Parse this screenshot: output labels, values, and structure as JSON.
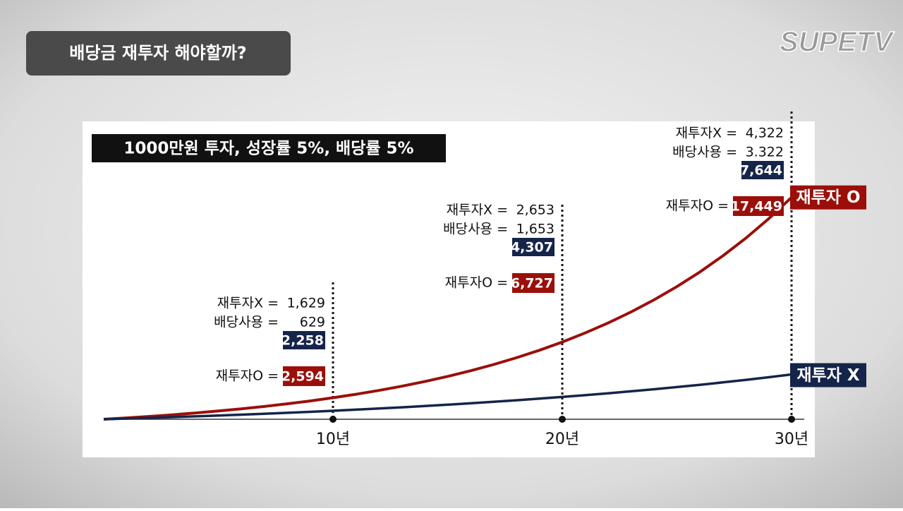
{
  "header": {
    "title": "배당금 재투자 해야할까?",
    "logo": "SUPETV"
  },
  "chart_data": {
    "type": "line",
    "subtitle": "1000만원 투자, 성장률 5%, 배당률 5%",
    "x": [
      0,
      1,
      2,
      3,
      4,
      5,
      6,
      7,
      8,
      9,
      10,
      11,
      12,
      13,
      14,
      15,
      16,
      17,
      18,
      19,
      20,
      21,
      22,
      23,
      24,
      25,
      26,
      27,
      28,
      29,
      30
    ],
    "xlim": [
      0,
      30
    ],
    "xticks": [
      {
        "value": 10,
        "label": "10년"
      },
      {
        "value": 20,
        "label": "20년"
      },
      {
        "value": 30,
        "label": "30년"
      }
    ],
    "ylim": [
      1000,
      20000
    ],
    "series": [
      {
        "name": "재투자 O",
        "color": "#9b0f0a",
        "values": [
          1000,
          1100,
          1210,
          1331,
          1464,
          1611,
          1772,
          1949,
          2144,
          2358,
          2594,
          2853,
          3138,
          3452,
          3797,
          4177,
          4595,
          5054,
          5560,
          6116,
          6727,
          7400,
          8140,
          8954,
          9850,
          10835,
          11918,
          13110,
          14421,
          15863,
          17449
        ]
      },
      {
        "name": "재투자 X",
        "color": "#15244a",
        "values": [
          1000,
          1050,
          1103,
          1158,
          1216,
          1276,
          1340,
          1407,
          1477,
          1551,
          1629,
          1710,
          1796,
          1886,
          1980,
          2079,
          2183,
          2292,
          2407,
          2527,
          2653,
          2786,
          2925,
          3072,
          3225,
          3386,
          3556,
          3733,
          3920,
          4116,
          4322
        ]
      }
    ],
    "annotations": [
      {
        "x": 10,
        "label_x": "재투자X  =",
        "value_x": "1,629",
        "label_div": "배당사용 =",
        "value_div": "629",
        "total": "2,258",
        "label_o": "재투자O =",
        "value_o": "2,594"
      },
      {
        "x": 20,
        "label_x": "재투자X  =",
        "value_x": "2,653",
        "label_div": "배당사용 =",
        "value_div": "1,653",
        "total": "4,307",
        "label_o": "재투자O =",
        "value_o": "6,727"
      },
      {
        "x": 30,
        "label_x": "재투자X  =",
        "value_x": "4,322",
        "label_div": "배당사용 =",
        "value_div": "3.322",
        "total": "7,644",
        "label_o": "재투자O =",
        "value_o": "17,449"
      }
    ]
  }
}
